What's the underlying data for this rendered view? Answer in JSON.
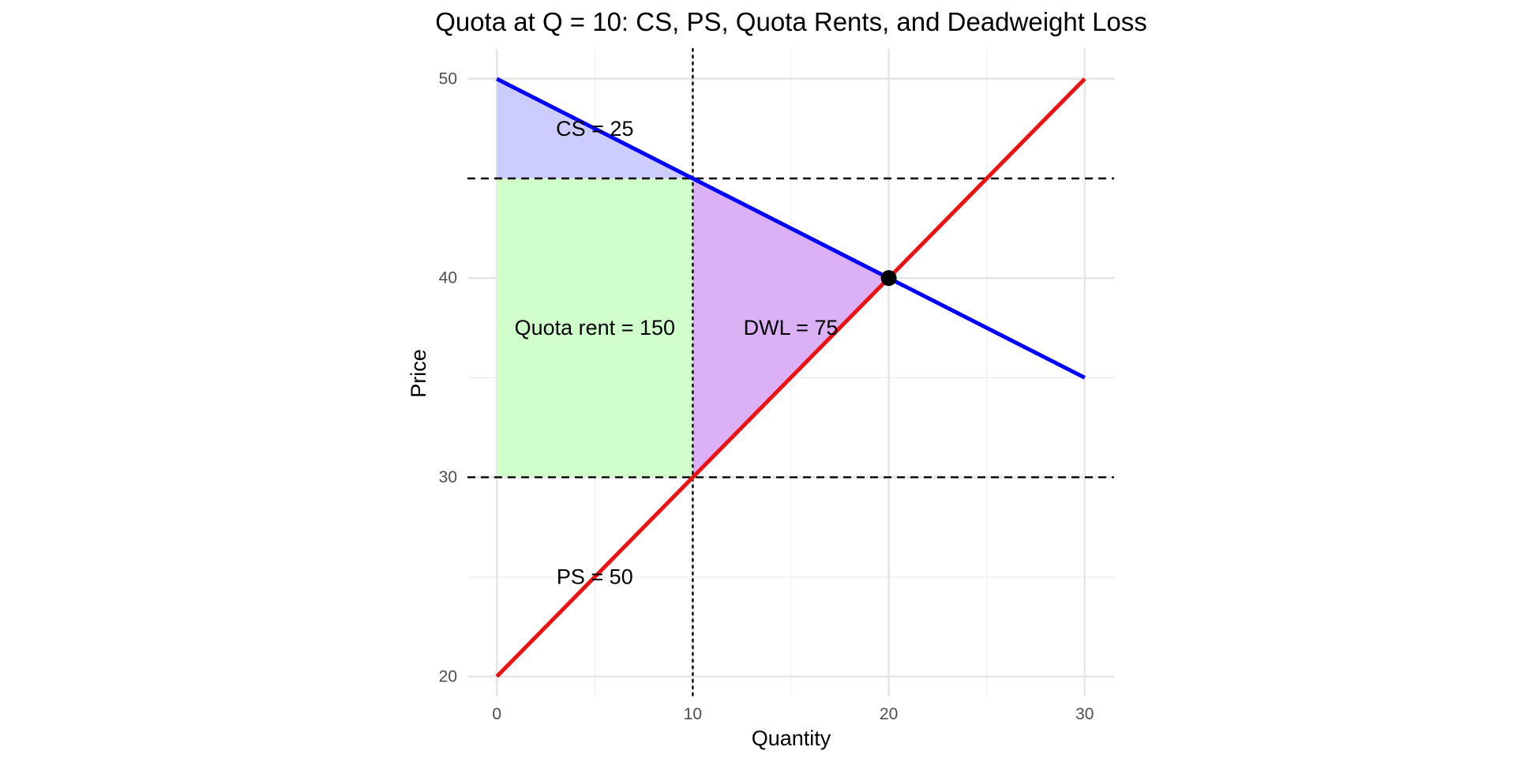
{
  "chart_data": {
    "type": "line",
    "title": "Quota at Q = 10: CS, PS, Quota Rents, and Deadweight Loss",
    "xlabel": "Quantity",
    "ylabel": "Price",
    "xlim": [
      -1.5,
      31.5
    ],
    "ylim": [
      19,
      51.5
    ],
    "x_ticks": [
      0,
      10,
      20,
      30
    ],
    "y_ticks": [
      20,
      30,
      40,
      50
    ],
    "x_minor": [
      5,
      15,
      25
    ],
    "y_minor": [
      25,
      35,
      45
    ],
    "grid": true,
    "series": [
      {
        "key": "demand",
        "x": [
          0,
          30
        ],
        "y": [
          50,
          35
        ],
        "color": "#0000ff"
      },
      {
        "key": "supply",
        "x": [
          0,
          30
        ],
        "y": [
          20,
          50
        ],
        "color": "#ee1111"
      }
    ],
    "hlines": [
      {
        "key": "consumer-price-line",
        "y": 45,
        "style": "dashed"
      },
      {
        "key": "producer-price-line",
        "y": 30,
        "style": "dashed"
      }
    ],
    "vlines": [
      {
        "key": "quota-line",
        "x": 10,
        "style": "dotted"
      }
    ],
    "regions": [
      {
        "key": "cs-region",
        "color": "#ccccff",
        "points": [
          [
            0,
            50
          ],
          [
            0,
            45
          ],
          [
            10,
            45
          ]
        ]
      },
      {
        "key": "quota-rent-region",
        "color": "#d1ffcc",
        "points": [
          [
            0,
            45
          ],
          [
            10,
            45
          ],
          [
            10,
            30
          ],
          [
            0,
            30
          ]
        ]
      },
      {
        "key": "dwl-region",
        "color": "#dbb0f5",
        "points": [
          [
            10,
            45
          ],
          [
            20,
            40
          ],
          [
            10,
            30
          ]
        ]
      }
    ],
    "points": [
      {
        "key": "equilibrium-point",
        "x": 20,
        "y": 40
      }
    ],
    "annotations": [
      {
        "key": "cs-label",
        "text": "CS = 25",
        "x": 5,
        "y": 47.5
      },
      {
        "key": "quota-rent-label",
        "text": "Quota rent = 150",
        "x": 5,
        "y": 37.5
      },
      {
        "key": "dwl-label",
        "text": "DWL = 75",
        "x": 15,
        "y": 37.5
      },
      {
        "key": "ps-label",
        "text": "PS = 50",
        "x": 5,
        "y": 25
      }
    ]
  }
}
